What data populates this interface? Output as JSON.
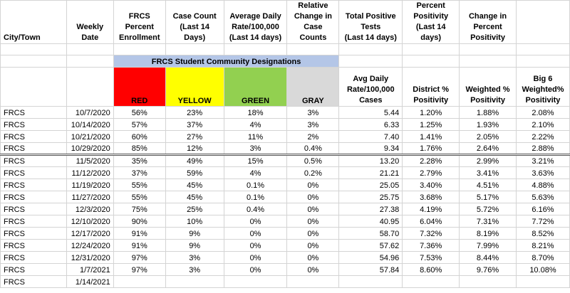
{
  "header": {
    "city": "City/Town",
    "weekly_date": "Weekly\nDate",
    "frcs_enroll": "FRCS\nPercent\nEnrollment",
    "case_count": "Case Count\n(Last 14 Days)",
    "avg_daily": "Average Daily\nRate/100,000\n(Last 14 days)",
    "relative_change": "Relative\nChange in\nCase Counts",
    "total_positive": "Total Positive\nTests\n(Last 14 days)",
    "percent_positivity": "Percent\nPositivity\n(Last 14 days)",
    "change_positivity": "Change in\nPercent\nPositivity"
  },
  "band_title": "FRCS Student Community Designations",
  "subheader": {
    "red": "RED",
    "yellow": "YELLOW",
    "green": "GREEN",
    "gray": "GRAY",
    "avg_daily_rate": "Avg Daily\nRate/100,000\nCases",
    "district_pos": "District %\nPositivity",
    "weighted_pos": "Weighted %\nPositivity",
    "big6": "Big 6\nWeighted%\nPositivity"
  },
  "colors": {
    "red": "#ff0000",
    "yellow": "#ffff00",
    "green": "#92d050",
    "gray": "#d9d9d9",
    "band": "#b4c6e7"
  },
  "rows": [
    {
      "city": "FRCS",
      "date": "10/7/2020",
      "enroll": "56%",
      "red": "23%",
      "yellow": "18%",
      "green": "3%",
      "rate": "5.44",
      "district": "1.20%",
      "weighted": "1.88%",
      "big6": "2.08%"
    },
    {
      "city": "FRCS",
      "date": "10/14/2020",
      "enroll": "57%",
      "red": "37%",
      "yellow": "4%",
      "green": "3%",
      "rate": "6.33",
      "district": "1.25%",
      "weighted": "1.93%",
      "big6": "2.10%"
    },
    {
      "city": "FRCS",
      "date": "10/21/2020",
      "enroll": "60%",
      "red": "27%",
      "yellow": "11%",
      "green": "2%",
      "rate": "7.40",
      "district": "1.41%",
      "weighted": "2.05%",
      "big6": "2.22%"
    },
    {
      "city": "FRCS",
      "date": "10/29/2020",
      "enroll": "85%",
      "red": "12%",
      "yellow": "3%",
      "green": "0.4%",
      "rate": "9.34",
      "district": "1.76%",
      "weighted": "2.64%",
      "big6": "2.88%"
    },
    {
      "city": "FRCS",
      "date": "11/5/2020",
      "enroll": "35%",
      "red": "49%",
      "yellow": "15%",
      "green": "0.5%",
      "rate": "13.20",
      "district": "2.28%",
      "weighted": "2.99%",
      "big6": "3.21%"
    },
    {
      "city": "FRCS",
      "date": "11/12/2020",
      "enroll": "37%",
      "red": "59%",
      "yellow": "4%",
      "green": "0.2%",
      "rate": "21.21",
      "district": "2.79%",
      "weighted": "3.41%",
      "big6": "3.63%"
    },
    {
      "city": "FRCS",
      "date": "11/19/2020",
      "enroll": "55%",
      "red": "45%",
      "yellow": "0.1%",
      "green": "0%",
      "rate": "25.05",
      "district": "3.40%",
      "weighted": "4.51%",
      "big6": "4.88%"
    },
    {
      "city": "FRCS",
      "date": "11/27/2020",
      "enroll": "55%",
      "red": "45%",
      "yellow": "0.1%",
      "green": "0%",
      "rate": "25.75",
      "district": "3.68%",
      "weighted": "5.17%",
      "big6": "5.63%"
    },
    {
      "city": "FRCS",
      "date": "12/3/2020",
      "enroll": "75%",
      "red": "25%",
      "yellow": "0.4%",
      "green": "0%",
      "rate": "27.38",
      "district": "4.19%",
      "weighted": "5.72%",
      "big6": "6.16%"
    },
    {
      "city": "FRCS",
      "date": "12/10/2020",
      "enroll": "90%",
      "red": "10%",
      "yellow": "0%",
      "green": "0%",
      "rate": "40.95",
      "district": "6.04%",
      "weighted": "7.31%",
      "big6": "7.72%"
    },
    {
      "city": "FRCS",
      "date": "12/17/2020",
      "enroll": "91%",
      "red": "9%",
      "yellow": "0%",
      "green": "0%",
      "rate": "58.70",
      "district": "7.32%",
      "weighted": "8.19%",
      "big6": "8.52%"
    },
    {
      "city": "FRCS",
      "date": "12/24/2020",
      "enroll": "91%",
      "red": "9%",
      "yellow": "0%",
      "green": "0%",
      "rate": "57.62",
      "district": "7.36%",
      "weighted": "7.99%",
      "big6": "8.21%"
    },
    {
      "city": "FRCS",
      "date": "12/31/2020",
      "enroll": "97%",
      "red": "3%",
      "yellow": "0%",
      "green": "0%",
      "rate": "54.96",
      "district": "7.53%",
      "weighted": "8.44%",
      "big6": "8.70%"
    },
    {
      "city": "FRCS",
      "date": "1/7/2021",
      "enroll": "97%",
      "red": "3%",
      "yellow": "0%",
      "green": "0%",
      "rate": "57.84",
      "district": "8.60%",
      "weighted": "9.76%",
      "big6": "10.08%"
    },
    {
      "city": "FRCS",
      "date": "1/14/2021",
      "enroll": "",
      "red": "",
      "yellow": "",
      "green": "",
      "rate": "",
      "district": "",
      "weighted": "",
      "big6": ""
    }
  ]
}
